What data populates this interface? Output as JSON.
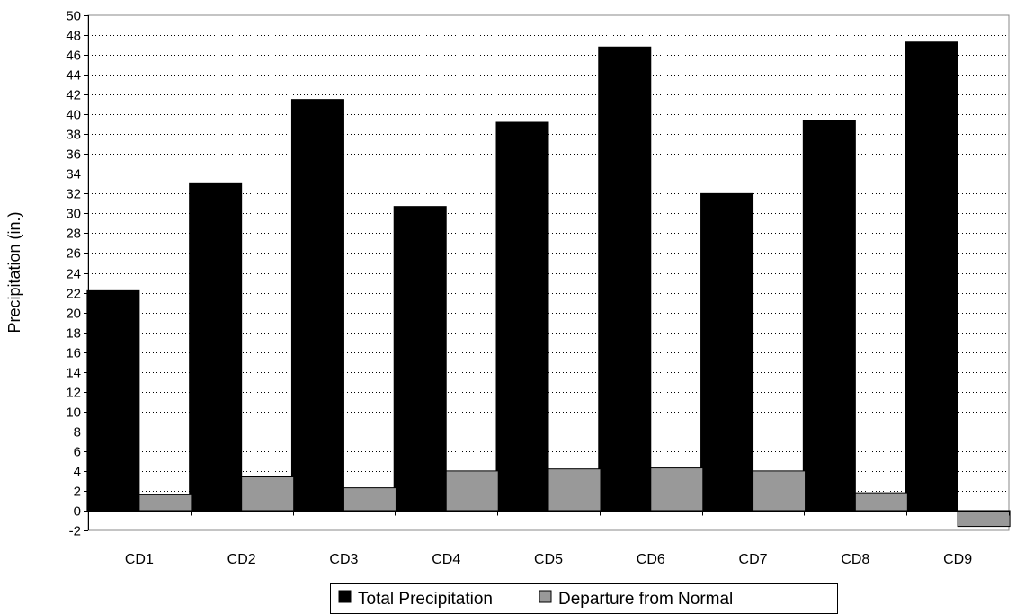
{
  "chart_data": {
    "type": "bar",
    "categories": [
      "CD1",
      "CD2",
      "CD3",
      "CD4",
      "CD5",
      "CD6",
      "CD7",
      "CD8",
      "CD9"
    ],
    "series": [
      {
        "name": "Total Precipitation",
        "color": "#000000",
        "values": [
          22.2,
          33.0,
          41.5,
          30.7,
          39.2,
          46.8,
          32.0,
          39.4,
          47.3
        ]
      },
      {
        "name": "Departure from Normal",
        "color": "#999999",
        "values": [
          1.6,
          3.4,
          2.3,
          4.0,
          4.2,
          4.3,
          4.0,
          1.8,
          -1.6
        ]
      }
    ],
    "title": "",
    "xlabel": "",
    "ylabel": "Precipitation (in.)",
    "ylim": [
      -2,
      50
    ],
    "ytick_step": 2,
    "grid": "horizontal dotted",
    "legend_position": "bottom-center"
  }
}
